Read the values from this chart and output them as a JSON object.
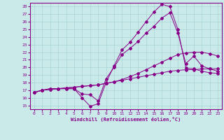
{
  "xlabel": "Windchill (Refroidissement éolien,°C)",
  "background_color": "#caeaea",
  "line_color": "#880088",
  "grid_color": "#aad4d4",
  "xlim": [
    -0.5,
    23.5
  ],
  "ylim": [
    14.5,
    28.5
  ],
  "yticks": [
    15,
    16,
    17,
    18,
    19,
    20,
    21,
    22,
    23,
    24,
    25,
    26,
    27,
    28
  ],
  "xticks": [
    0,
    1,
    2,
    3,
    4,
    5,
    6,
    7,
    8,
    9,
    10,
    11,
    12,
    13,
    14,
    15,
    16,
    17,
    18,
    19,
    20,
    21,
    22,
    23
  ],
  "line1_x": [
    0,
    1,
    2,
    3,
    4,
    5,
    6,
    7,
    8,
    9,
    10,
    11,
    12,
    13,
    14,
    15,
    16,
    17,
    18,
    19,
    20,
    21,
    22,
    23
  ],
  "line1_y": [
    16.7,
    17.0,
    17.2,
    17.2,
    17.2,
    17.2,
    16.0,
    14.9,
    15.2,
    18.0,
    20.2,
    22.3,
    23.3,
    24.6,
    26.0,
    27.3,
    28.3,
    28.0,
    25.0,
    19.9,
    19.8,
    19.5,
    19.3,
    19.2
  ],
  "line2_x": [
    0,
    1,
    2,
    3,
    4,
    5,
    6,
    7,
    8,
    9,
    10,
    11,
    12,
    13,
    14,
    15,
    16,
    17,
    18,
    19,
    20,
    21,
    22,
    23
  ],
  "line2_y": [
    16.7,
    17.0,
    17.2,
    17.2,
    17.2,
    17.2,
    16.5,
    16.4,
    15.6,
    18.5,
    20.0,
    21.7,
    22.5,
    23.4,
    24.5,
    25.4,
    26.5,
    27.2,
    24.5,
    20.5,
    21.5,
    20.2,
    19.8,
    19.5
  ],
  "line3_x": [
    0,
    1,
    2,
    3,
    4,
    5,
    6,
    7,
    8,
    9,
    10,
    11,
    12,
    13,
    14,
    15,
    16,
    17,
    18,
    19,
    20,
    21,
    22,
    23
  ],
  "line3_y": [
    16.7,
    17.0,
    17.1,
    17.2,
    17.3,
    17.4,
    17.5,
    17.6,
    17.7,
    17.9,
    18.1,
    18.3,
    18.5,
    18.7,
    18.9,
    19.1,
    19.3,
    19.5,
    19.6,
    19.7,
    19.7,
    19.8,
    19.8,
    19.8
  ],
  "line4_x": [
    0,
    1,
    2,
    3,
    4,
    5,
    6,
    7,
    8,
    9,
    10,
    11,
    12,
    13,
    14,
    15,
    16,
    17,
    18,
    19,
    20,
    21,
    22,
    23
  ],
  "line4_y": [
    16.7,
    17.0,
    17.1,
    17.2,
    17.3,
    17.4,
    17.5,
    17.6,
    17.7,
    17.9,
    18.1,
    18.4,
    18.8,
    19.2,
    19.7,
    20.2,
    20.7,
    21.2,
    21.7,
    21.9,
    22.0,
    22.0,
    21.8,
    21.5
  ]
}
